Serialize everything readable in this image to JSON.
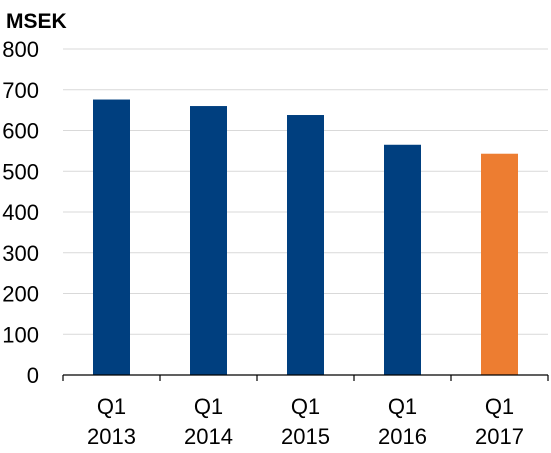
{
  "chart_data": {
    "type": "bar",
    "unit_label": "MSEK",
    "title": "",
    "xlabel": "",
    "ylabel": "MSEK",
    "ylim": [
      0,
      800
    ],
    "yticks": [
      0,
      100,
      200,
      300,
      400,
      500,
      600,
      700,
      800
    ],
    "categories": [
      {
        "line1": "Q1",
        "line2": "2013"
      },
      {
        "line1": "Q1",
        "line2": "2014"
      },
      {
        "line1": "Q1",
        "line2": "2015"
      },
      {
        "line1": "Q1",
        "line2": "2016"
      },
      {
        "line1": "Q1",
        "line2": "2017"
      }
    ],
    "values": [
      676,
      660,
      638,
      565,
      543
    ],
    "bar_colors": [
      "#003f7f",
      "#003f7f",
      "#003f7f",
      "#003f7f",
      "#ed7d31"
    ],
    "grid": true,
    "legend": "none"
  }
}
